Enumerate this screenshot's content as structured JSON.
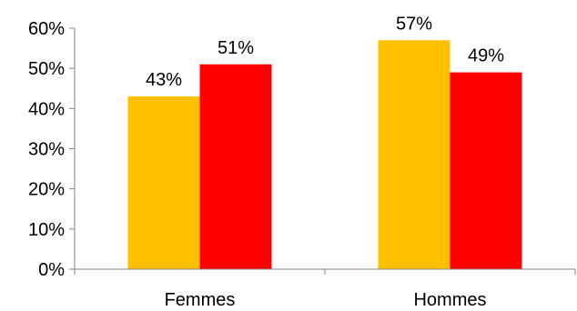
{
  "chart_data": {
    "type": "bar",
    "categories": [
      "Femmes",
      "Hommes"
    ],
    "series": [
      {
        "values": [
          43,
          57
        ],
        "color": "#FFC000"
      },
      {
        "values": [
          51,
          49
        ],
        "color": "#FF0000"
      }
    ],
    "data_labels": [
      [
        "43%",
        "57%"
      ],
      [
        "51%",
        "49%"
      ]
    ],
    "ylim": [
      0,
      60
    ],
    "yticks": [
      0,
      10,
      20,
      30,
      40,
      50,
      60
    ],
    "ytick_labels": [
      "0%",
      "10%",
      "20%",
      "30%",
      "40%",
      "50%",
      "60%"
    ],
    "grid": false,
    "legend": "none",
    "title": "",
    "xlabel": "",
    "ylabel": ""
  }
}
